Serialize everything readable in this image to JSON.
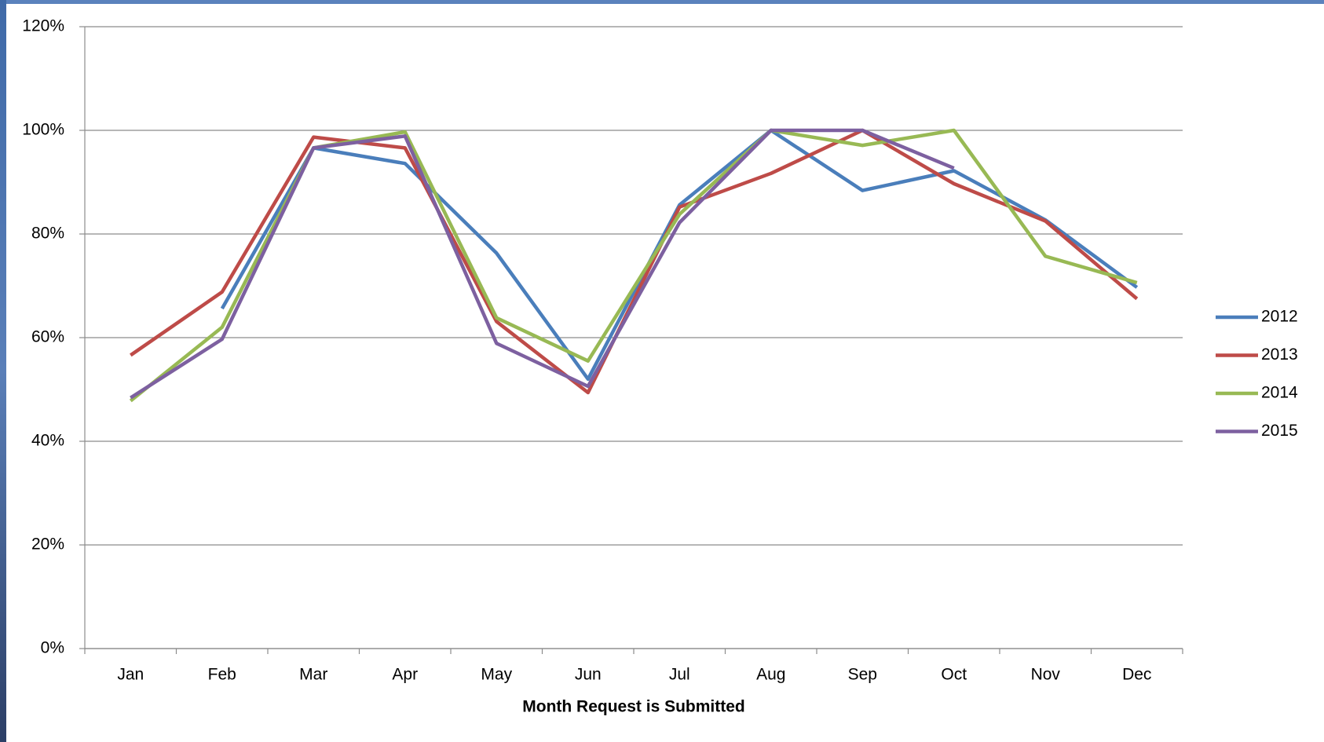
{
  "chart_data": {
    "type": "line",
    "x_label": "Month Request is Submitted",
    "categories": [
      "Jan",
      "Feb",
      "Mar",
      "Apr",
      "May",
      "Jun",
      "Jul",
      "Aug",
      "Sep",
      "Oct",
      "Nov",
      "Dec"
    ],
    "series": [
      {
        "name": "2012",
        "color": "#4a7ebb",
        "values": [
          null,
          65.6,
          96.6,
          93.6,
          76.3,
          52.0,
          85.6,
          100,
          88.4,
          92.2,
          82.7,
          69.7
        ]
      },
      {
        "name": "2013",
        "color": "#be4b48",
        "values": [
          56.6,
          68.8,
          98.7,
          96.6,
          63.1,
          49.4,
          85.2,
          91.7,
          100,
          89.7,
          82.5,
          67.5
        ]
      },
      {
        "name": "2014",
        "color": "#98b954",
        "values": [
          47.8,
          62.0,
          96.6,
          99.7,
          63.8,
          55.5,
          83.8,
          100,
          97.1,
          100,
          75.7,
          70.6
        ]
      },
      {
        "name": "2015",
        "color": "#7d60a0",
        "values": [
          48.4,
          59.7,
          96.6,
          98.9,
          58.9,
          50.6,
          82.2,
          100,
          100,
          92.7,
          null,
          null
        ]
      }
    ],
    "ylim": [
      0,
      120
    ],
    "yticks": [
      {
        "value": 0,
        "label": "0%"
      },
      {
        "value": 20,
        "label": "20%"
      },
      {
        "value": 40,
        "label": "40%"
      },
      {
        "value": 60,
        "label": "60%"
      },
      {
        "value": 80,
        "label": "80%"
      },
      {
        "value": 100,
        "label": "100%"
      },
      {
        "value": 120,
        "label": "120%"
      }
    ],
    "grid": true,
    "legend": "right"
  }
}
